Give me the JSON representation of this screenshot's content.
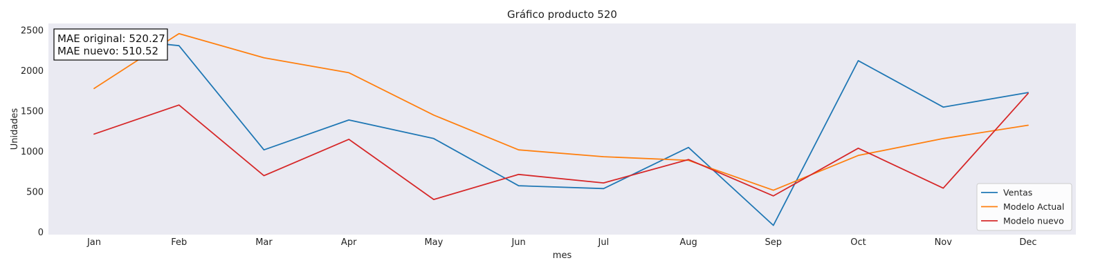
{
  "chart_data": {
    "type": "line",
    "title": "Gráfico producto 520",
    "xlabel": "mes",
    "ylabel": "Unidades",
    "categories": [
      "Jan",
      "Feb",
      "Mar",
      "Apr",
      "May",
      "Jun",
      "Jul",
      "Aug",
      "Sep",
      "Oct",
      "Nov",
      "Dec"
    ],
    "ylim": [
      0,
      2550
    ],
    "yticks": [
      0,
      500,
      1000,
      1500,
      2000,
      2500
    ],
    "grid": false,
    "legend_position": "bottom-right",
    "series": [
      {
        "name": "Ventas",
        "color": "#1f77b4",
        "values": [
          2420,
          2310,
          1020,
          1390,
          1160,
          575,
          540,
          1050,
          85,
          2125,
          1550,
          1730
        ]
      },
      {
        "name": "Modelo Actual",
        "color": "#ff7f0e",
        "values": [
          1780,
          2460,
          2160,
          1975,
          1450,
          1020,
          935,
          890,
          520,
          950,
          1160,
          1325
        ]
      },
      {
        "name": "Modelo nuevo",
        "color": "#d62728",
        "values": [
          1215,
          1575,
          700,
          1150,
          405,
          715,
          610,
          900,
          450,
          1040,
          545,
          1720
        ]
      }
    ],
    "annotations": [
      "MAE original: 520.27",
      "MAE nuevo: 510.52"
    ]
  },
  "colors": {
    "plot_background": "#eaeaf2",
    "annotation_box_border": "#000000"
  }
}
